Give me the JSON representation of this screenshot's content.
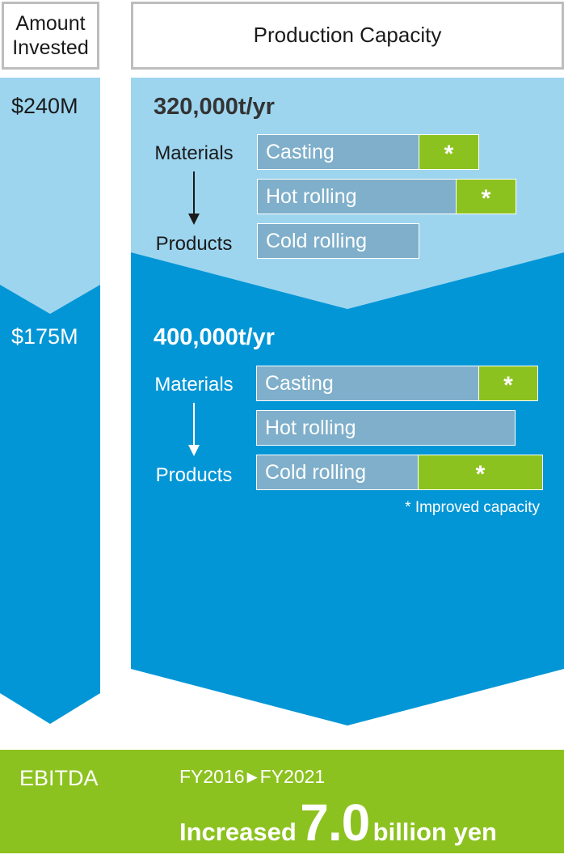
{
  "headers": {
    "amount_label": "Amount Invested",
    "capacity_label": "Production Capacity"
  },
  "stage_before": {
    "amount": "$240M",
    "capacity": "320,000t/yr",
    "flow_from": "Materials",
    "flow_to": "Products",
    "processes": [
      {
        "label": "Casting",
        "improved": true,
        "marker": "*"
      },
      {
        "label": "Hot rolling",
        "improved": true,
        "marker": "*"
      },
      {
        "label": "Cold rolling",
        "improved": false,
        "marker": ""
      }
    ]
  },
  "stage_after": {
    "amount": "$175M",
    "capacity": "400,000t/yr",
    "flow_from": "Materials",
    "flow_to": "Products",
    "processes": [
      {
        "label": "Casting",
        "improved": true,
        "marker": "*"
      },
      {
        "label": "Hot rolling",
        "improved": false,
        "marker": ""
      },
      {
        "label": "Cold rolling",
        "improved": true,
        "marker": "*"
      }
    ],
    "footnote": "* Improved capacity"
  },
  "ebitda": {
    "label": "EBITDA",
    "period_from": "FY2016",
    "period_to": "FY2021",
    "prefix": "Increased",
    "value": "7.0",
    "unit": "billion yen"
  },
  "colors": {
    "light_blue": "#9dd5ef",
    "dark_blue": "#0396d6",
    "bar": "#7fafca",
    "green": "#8cc21f"
  }
}
